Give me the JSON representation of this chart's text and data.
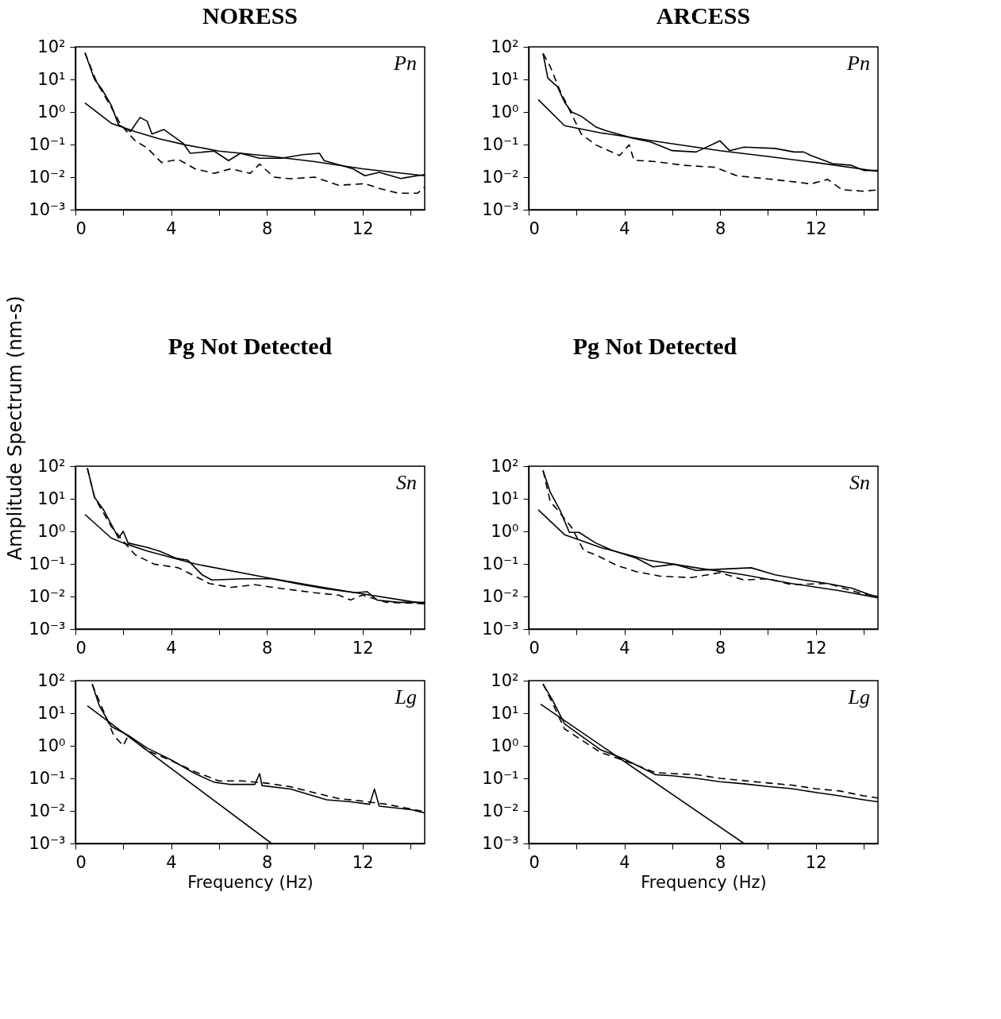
{
  "chart_data": [
    {
      "type": "line",
      "title": "NORESS",
      "ylabel": "Amplitude Spectrum (nm-s)",
      "annotations": [
        "Pn"
      ],
      "log": true,
      "xlim": [
        0,
        14.6
      ],
      "ylim": [
        0.001,
        100
      ],
      "xticks": [
        0,
        {
          "value": 2,
          "label": null
        },
        4,
        {
          "value": 6,
          "label": null
        },
        8,
        {
          "value": 10,
          "label": null
        },
        12,
        {
          "value": 14,
          "label": null
        }
      ],
      "yticks": [
        {
          "value": 0.001,
          "label": "10⁻³"
        },
        {
          "value": 0.01,
          "label": "10⁻²"
        },
        {
          "value": 0.1,
          "label": "10⁻¹"
        },
        {
          "value": 1,
          "label": "10⁰"
        },
        {
          "value": 10,
          "label": "10¹"
        },
        {
          "value": 100,
          "label": "10²"
        }
      ],
      "series": [
        {
          "color": "#000000",
          "line_style": "solid",
          "x": [
            0.4,
            0.8,
            1.1,
            1.5,
            1.8,
            2.3,
            2.7,
            3.0,
            3.2,
            3.7,
            4.5,
            4.8,
            5.8,
            6.4,
            6.9,
            7.7,
            8.6,
            9.5,
            10.2,
            10.4,
            11.6,
            12.1,
            12.7,
            13.6,
            14.3,
            14.6
          ],
          "values": [
            66,
            10,
            5.1,
            1.6,
            0.41,
            0.25,
            0.68,
            0.52,
            0.21,
            0.29,
            0.11,
            0.054,
            0.063,
            0.032,
            0.054,
            0.038,
            0.038,
            0.049,
            0.054,
            0.032,
            0.018,
            0.011,
            0.014,
            0.0091,
            0.011,
            0.012
          ]
        },
        {
          "color": "#000000",
          "line_style": "dashed",
          "x": [
            0.4,
            0.9,
            1.5,
            1.9,
            2.5,
            3.0,
            3.6,
            4.3,
            5.0,
            5.8,
            6.5,
            7.3,
            7.7,
            8.3,
            9.0,
            10.0,
            11.0,
            12.1,
            12.7,
            13.5,
            14.3,
            14.6
          ],
          "values": [
            66,
            7.9,
            1.4,
            0.4,
            0.13,
            0.079,
            0.028,
            0.035,
            0.018,
            0.013,
            0.018,
            0.013,
            0.025,
            0.01,
            0.0089,
            0.01,
            0.0056,
            0.0063,
            0.0045,
            0.0032,
            0.0032,
            0.005
          ]
        },
        {
          "color": "#000000",
          "line_style": "solid",
          "x": [
            0.4,
            1.5,
            2.5,
            3.5,
            4.6,
            6.0,
            8.0,
            10.0,
            12.0,
            14.6
          ],
          "values": [
            1.9,
            0.45,
            0.25,
            0.15,
            0.098,
            0.063,
            0.045,
            0.03,
            0.018,
            0.011
          ]
        }
      ]
    },
    {
      "type": "line",
      "title": "ARCESS",
      "annotations": [
        "Pn"
      ],
      "log": true,
      "xlim": [
        0,
        14.6
      ],
      "ylim": [
        0.001,
        100
      ],
      "xticks": [
        0,
        {
          "value": 2,
          "label": null
        },
        4,
        {
          "value": 6,
          "label": null
        },
        8,
        {
          "value": 10,
          "label": null
        },
        12,
        {
          "value": 14,
          "label": null
        }
      ],
      "yticks": [
        {
          "value": 0.001,
          "label": "10⁻³"
        },
        {
          "value": 0.01,
          "label": "10⁻²"
        },
        {
          "value": 0.1,
          "label": "10⁻¹"
        },
        {
          "value": 1,
          "label": "10⁰"
        },
        {
          "value": 10,
          "label": "10¹"
        },
        {
          "value": 100,
          "label": "10²"
        }
      ],
      "series": [
        {
          "color": "#000000",
          "line_style": "solid",
          "x": [
            0.6,
            0.8,
            1.2,
            1.5,
            1.8,
            2.2,
            2.8,
            3.2,
            4.3,
            5.1,
            6.0,
            7.0,
            8.0,
            8.4,
            9.0,
            10.3,
            11.1,
            11.5,
            11.8,
            12.7,
            13.5,
            14.0,
            14.6
          ],
          "values": [
            63,
            11,
            6,
            2.0,
            1.0,
            0.74,
            0.35,
            0.27,
            0.16,
            0.12,
            0.065,
            0.059,
            0.13,
            0.065,
            0.083,
            0.076,
            0.059,
            0.059,
            0.046,
            0.026,
            0.023,
            0.016,
            0.016
          ]
        },
        {
          "color": "#000000",
          "line_style": "dashed",
          "x": [
            0.6,
            0.9,
            1.3,
            2.2,
            2.8,
            3.8,
            4.2,
            4.4,
            5.3,
            6.5,
            7.8,
            8.7,
            10.2,
            11.8,
            12.5,
            13.1,
            14.0,
            14.6
          ],
          "values": [
            63,
            25,
            4.7,
            0.21,
            0.098,
            0.046,
            0.098,
            0.033,
            0.03,
            0.023,
            0.02,
            0.011,
            0.0085,
            0.0062,
            0.0085,
            0.0041,
            0.0037,
            0.0041
          ]
        },
        {
          "color": "#000000",
          "line_style": "solid",
          "x": [
            0.4,
            1.5,
            3.0,
            5.5,
            8.0,
            10.0,
            12.0,
            14.6
          ],
          "values": [
            2.4,
            0.38,
            0.23,
            0.12,
            0.065,
            0.043,
            0.028,
            0.015
          ]
        }
      ]
    },
    {
      "type": "other",
      "title": "Pg Not Detected"
    },
    {
      "type": "other",
      "title": "Pg Not Detected"
    },
    {
      "type": "line",
      "annotations": [
        "Sn"
      ],
      "log": true,
      "xlim": [
        0,
        14.6
      ],
      "ylim": [
        0.001,
        100
      ],
      "xticks": [
        0,
        {
          "value": 2,
          "label": null
        },
        4,
        {
          "value": 6,
          "label": null
        },
        8,
        {
          "value": 10,
          "label": null
        },
        12,
        {
          "value": 14,
          "label": null
        }
      ],
      "yticks": [
        {
          "value": 0.001,
          "label": "10⁻³"
        },
        {
          "value": 0.01,
          "label": "10⁻²"
        },
        {
          "value": 0.1,
          "label": "10⁻¹"
        },
        {
          "value": 1,
          "label": "10⁰"
        },
        {
          "value": 10,
          "label": "10¹"
        },
        {
          "value": 100,
          "label": "10²"
        }
      ],
      "series": [
        {
          "color": "#000000",
          "line_style": "solid",
          "x": [
            0.5,
            0.8,
            1.2,
            1.6,
            1.8,
            2.0,
            2.2,
            3.0,
            3.5,
            4.2,
            4.7,
            5.3,
            5.7,
            7.0,
            8.2,
            9.5,
            10.5,
            11.7,
            12.2,
            12.6,
            13.5,
            14.6
          ],
          "values": [
            87,
            11,
            4.3,
            1.2,
            0.62,
            1.0,
            0.44,
            0.32,
            0.25,
            0.15,
            0.13,
            0.046,
            0.032,
            0.035,
            0.035,
            0.023,
            0.017,
            0.013,
            0.014,
            0.0078,
            0.0066,
            0.0066
          ]
        },
        {
          "color": "#000000",
          "line_style": "dashed",
          "x": [
            0.5,
            0.8,
            1.5,
            2.1,
            2.5,
            3.3,
            4.3,
            5.0,
            5.6,
            6.5,
            7.5,
            8.5,
            10.0,
            11.0,
            11.5,
            12.0,
            13.0,
            14.6
          ],
          "values": [
            87,
            11,
            1.4,
            0.41,
            0.19,
            0.098,
            0.076,
            0.042,
            0.025,
            0.019,
            0.023,
            0.018,
            0.013,
            0.011,
            0.0078,
            0.011,
            0.0066,
            0.006
          ]
        },
        {
          "color": "#000000",
          "line_style": "solid",
          "x": [
            0.4,
            1.5,
            2.0,
            3.0,
            5.0,
            8.0,
            10.0,
            12.0,
            14.6
          ],
          "values": [
            3.3,
            0.62,
            0.44,
            0.25,
            0.1,
            0.038,
            0.021,
            0.012,
            0.006
          ]
        }
      ]
    },
    {
      "type": "line",
      "annotations": [
        "Sn"
      ],
      "log": true,
      "xlim": [
        0,
        14.6
      ],
      "ylim": [
        0.001,
        100
      ],
      "xticks": [
        0,
        {
          "value": 2,
          "label": null
        },
        4,
        {
          "value": 6,
          "label": null
        },
        8,
        {
          "value": 10,
          "label": null
        },
        12,
        {
          "value": 14,
          "label": null
        }
      ],
      "yticks": [
        {
          "value": 0.001,
          "label": "10⁻³"
        },
        {
          "value": 0.01,
          "label": "10⁻²"
        },
        {
          "value": 0.1,
          "label": "10⁻¹"
        },
        {
          "value": 1,
          "label": "10⁰"
        },
        {
          "value": 10,
          "label": "10¹"
        },
        {
          "value": 100,
          "label": "10²"
        }
      ],
      "series": [
        {
          "color": "#000000",
          "line_style": "solid",
          "x": [
            0.6,
            0.9,
            1.3,
            1.7,
            2.1,
            2.8,
            3.5,
            4.5,
            5.2,
            6.1,
            7.0,
            8.0,
            9.3,
            10.3,
            11.5,
            12.5,
            13.5,
            14.3,
            14.6
          ],
          "values": [
            74,
            16,
            4.6,
            0.93,
            0.93,
            0.44,
            0.26,
            0.15,
            0.081,
            0.098,
            0.063,
            0.069,
            0.076,
            0.046,
            0.032,
            0.025,
            0.018,
            0.011,
            0.01
          ]
        },
        {
          "color": "#000000",
          "line_style": "dashed",
          "x": [
            0.6,
            0.9,
            1.2,
            1.8,
            2.3,
            2.8,
            3.7,
            4.5,
            5.5,
            6.8,
            8.0,
            9.0,
            10.0,
            11.0,
            12.5,
            13.8,
            14.6
          ],
          "values": [
            74,
            8.3,
            4.6,
            1.3,
            0.26,
            0.19,
            0.089,
            0.058,
            0.042,
            0.038,
            0.054,
            0.032,
            0.035,
            0.023,
            0.025,
            0.013,
            0.01
          ]
        },
        {
          "color": "#000000",
          "line_style": "solid",
          "x": [
            0.4,
            1.5,
            3.0,
            5.0,
            7.0,
            9.0,
            11.0,
            13.0,
            14.6
          ],
          "values": [
            4.6,
            0.79,
            0.32,
            0.13,
            0.076,
            0.046,
            0.025,
            0.015,
            0.0091
          ]
        }
      ]
    },
    {
      "type": "line",
      "xlabel": "Frequency (Hz)",
      "annotations": [
        "Lg"
      ],
      "log": true,
      "xlim": [
        0,
        14.6
      ],
      "ylim": [
        0.001,
        100
      ],
      "xticks": [
        0,
        {
          "value": 2,
          "label": null
        },
        4,
        {
          "value": 6,
          "label": null
        },
        8,
        {
          "value": 10,
          "label": null
        },
        12,
        {
          "value": 14,
          "label": null
        }
      ],
      "yticks": [
        {
          "value": 0.001,
          "label": "10⁻³"
        },
        {
          "value": 0.01,
          "label": "10⁻²"
        },
        {
          "value": 0.1,
          "label": "10⁻¹"
        },
        {
          "value": 1,
          "label": "10⁰"
        },
        {
          "value": 10,
          "label": "10¹"
        },
        {
          "value": 100,
          "label": "10²"
        }
      ],
      "series": [
        {
          "color": "#000000",
          "line_style": "solid",
          "x": [
            0.7,
            1.0,
            1.5,
            2.2,
            3.0,
            4.0,
            5.0,
            5.8,
            6.5,
            7.5,
            7.7,
            7.8,
            9.0,
            10.5,
            11.5,
            12.3,
            12.5,
            12.7,
            14.0,
            14.6
          ],
          "values": [
            78,
            17,
            3.9,
            2.1,
            0.85,
            0.37,
            0.14,
            0.076,
            0.065,
            0.065,
            0.14,
            0.06,
            0.047,
            0.022,
            0.019,
            0.016,
            0.047,
            0.014,
            0.011,
            0.0087
          ]
        },
        {
          "color": "#000000",
          "line_style": "dashed",
          "x": [
            0.7,
            1.6,
            2.0,
            2.2,
            3.0,
            4.0,
            5.0,
            6.0,
            7.0,
            8.0,
            9.0,
            10.0,
            11.0,
            12.0,
            13.0,
            14.6
          ],
          "values": [
            78,
            2.1,
            1.0,
            2.0,
            0.72,
            0.35,
            0.16,
            0.083,
            0.083,
            0.071,
            0.055,
            0.036,
            0.024,
            0.02,
            0.016,
            0.0095
          ]
        },
        {
          "color": "#000000",
          "line_style": "solid",
          "x": [
            0.5,
            8.2
          ],
          "values": [
            17,
            0.001
          ]
        }
      ]
    },
    {
      "type": "line",
      "xlabel": "Frequency (Hz)",
      "annotations": [
        "Lg"
      ],
      "log": true,
      "xlim": [
        0,
        14.6
      ],
      "ylim": [
        0.001,
        100
      ],
      "xticks": [
        0,
        {
          "value": 2,
          "label": null
        },
        4,
        {
          "value": 6,
          "label": null
        },
        8,
        {
          "value": 10,
          "label": null
        },
        12,
        {
          "value": 14,
          "label": null
        }
      ],
      "yticks": [
        {
          "value": 0.001,
          "label": "10⁻³"
        },
        {
          "value": 0.01,
          "label": "10⁻²"
        },
        {
          "value": 0.1,
          "label": "10⁻¹"
        },
        {
          "value": 1,
          "label": "10⁰"
        },
        {
          "value": 10,
          "label": "10¹"
        },
        {
          "value": 100,
          "label": "10²"
        }
      ],
      "series": [
        {
          "color": "#000000",
          "line_style": "solid",
          "x": [
            0.6,
            1.0,
            1.5,
            2.2,
            3.0,
            4.0,
            4.8,
            5.3,
            6.0,
            7.0,
            8.0,
            9.0,
            10.0,
            11.0,
            12.0,
            13.0,
            14.0,
            14.6
          ],
          "values": [
            79,
            25,
            4.7,
            2.0,
            0.76,
            0.39,
            0.2,
            0.13,
            0.12,
            0.1,
            0.079,
            0.068,
            0.056,
            0.048,
            0.037,
            0.029,
            0.022,
            0.019
          ]
        },
        {
          "color": "#000000",
          "line_style": "dashed",
          "x": [
            0.6,
            1.0,
            1.5,
            2.0,
            3.0,
            4.0,
            4.8,
            5.3,
            6.0,
            7.0,
            8.0,
            9.0,
            10.0,
            11.0,
            12.0,
            13.0,
            14.0,
            14.6
          ],
          "values": [
            79,
            20,
            3.3,
            1.9,
            0.63,
            0.35,
            0.21,
            0.15,
            0.14,
            0.13,
            0.1,
            0.085,
            0.072,
            0.062,
            0.048,
            0.041,
            0.029,
            0.025
          ]
        },
        {
          "color": "#000000",
          "line_style": "solid",
          "x": [
            0.5,
            9.0
          ],
          "values": [
            19,
            0.001
          ]
        }
      ]
    }
  ]
}
